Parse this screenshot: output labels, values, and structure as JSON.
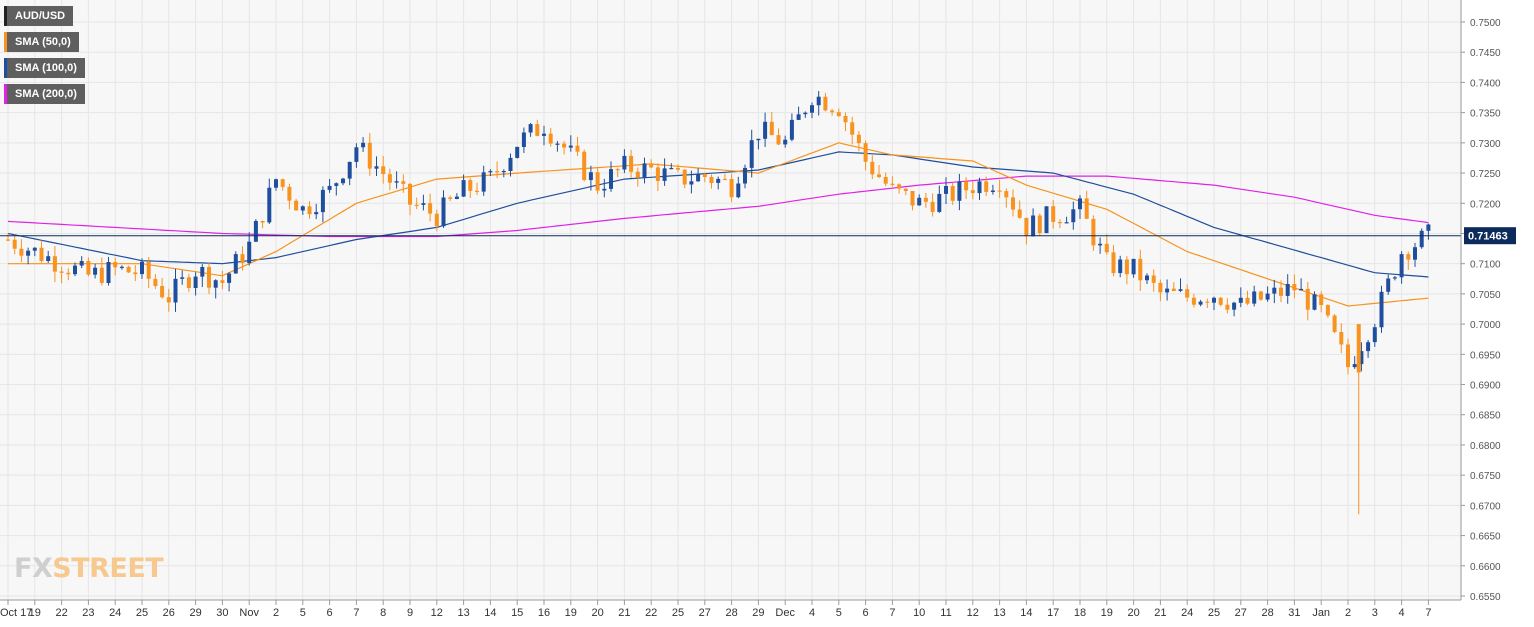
{
  "legend": [
    {
      "label": "AUD/USD",
      "color": "#222222"
    },
    {
      "label": "SMA (50,0)",
      "color": "#f7931e"
    },
    {
      "label": "SMA (100,0)",
      "color": "#1f4e9c"
    },
    {
      "label": "SMA (200,0)",
      "color": "#e021e6"
    }
  ],
  "logo": {
    "part1": "FX",
    "part2": "STREET"
  },
  "colors": {
    "bull": "#1f4e9c",
    "bear": "#f7931e",
    "sma50": "#f7931e",
    "sma100": "#1f4e9c",
    "sma200": "#e021e6",
    "grid": "#e6e6e6",
    "plot_bg": "#f7f7f7",
    "price_line": "#0c2a5c"
  },
  "chart_data": {
    "type": "candlestick",
    "symbol": "AUD/USD",
    "ylim": [
      0.6538,
      0.7535
    ],
    "y_ticks": [
      "0.7500",
      "0.7450",
      "0.7400",
      "0.7350",
      "0.7300",
      "0.7250",
      "0.7200",
      "0.7150",
      "0.7100",
      "0.7050",
      "0.7000",
      "0.6950",
      "0.6900",
      "0.6850",
      "0.6800",
      "0.6750",
      "0.6700",
      "0.6650",
      "0.6600",
      "0.6550"
    ],
    "x_labels": [
      "Oct 17",
      "19",
      "22",
      "23",
      "24",
      "25",
      "26",
      "29",
      "30",
      "Nov",
      "2",
      "5",
      "6",
      "7",
      "8",
      "9",
      "12",
      "13",
      "14",
      "15",
      "16",
      "19",
      "20",
      "21",
      "22",
      "25",
      "27",
      "28",
      "29",
      "Dec",
      "4",
      "5",
      "6",
      "7",
      "10",
      "11",
      "12",
      "13",
      "14",
      "17",
      "18",
      "19",
      "20",
      "21",
      "24",
      "25",
      "27",
      "28",
      "31",
      "Jan",
      "2",
      "3",
      "4",
      "7"
    ],
    "current_price": 0.71463,
    "current_price_label": "0.71463",
    "close_anchors": [
      [
        0,
        0.714
      ],
      [
        1,
        0.712
      ],
      [
        2,
        0.71
      ],
      [
        3,
        0.708
      ],
      [
        4,
        0.709
      ],
      [
        5,
        0.7085
      ],
      [
        6,
        0.7045
      ],
      [
        7,
        0.709
      ],
      [
        8,
        0.707
      ],
      [
        9,
        0.713
      ],
      [
        10,
        0.724
      ],
      [
        11,
        0.719
      ],
      [
        12,
        0.722
      ],
      [
        13,
        0.7295
      ],
      [
        14,
        0.725
      ],
      [
        15,
        0.72
      ],
      [
        16,
        0.718
      ],
      [
        17,
        0.722
      ],
      [
        18,
        0.724
      ],
      [
        19,
        0.73
      ],
      [
        20,
        0.733
      ],
      [
        21,
        0.728
      ],
      [
        22,
        0.723
      ],
      [
        23,
        0.726
      ],
      [
        24,
        0.7255
      ],
      [
        25,
        0.724
      ],
      [
        26,
        0.7245
      ],
      [
        27,
        0.723
      ],
      [
        28,
        0.732
      ],
      [
        29,
        0.73
      ],
      [
        30,
        0.738
      ],
      [
        31,
        0.736
      ],
      [
        32,
        0.727
      ],
      [
        33,
        0.722
      ],
      [
        34,
        0.72
      ],
      [
        35,
        0.721
      ],
      [
        36,
        0.723
      ],
      [
        37,
        0.724
      ],
      [
        38,
        0.716
      ],
      [
        39,
        0.718
      ],
      [
        40,
        0.719
      ],
      [
        41,
        0.71
      ],
      [
        42,
        0.709
      ],
      [
        43,
        0.705
      ],
      [
        44,
        0.7045
      ],
      [
        45,
        0.705
      ],
      [
        46,
        0.703
      ],
      [
        47,
        0.7045
      ],
      [
        48,
        0.706
      ],
      [
        49,
        0.702
      ],
      [
        50,
        0.693
      ],
      [
        51,
        0.701
      ],
      [
        52,
        0.712
      ],
      [
        53,
        0.7146
      ]
    ],
    "spike_low": {
      "x": 50.4,
      "value": 0.6685
    },
    "sma50": [
      [
        0,
        0.71
      ],
      [
        5,
        0.71
      ],
      [
        8,
        0.708
      ],
      [
        10,
        0.712
      ],
      [
        13,
        0.72
      ],
      [
        16,
        0.724
      ],
      [
        19,
        0.725
      ],
      [
        24,
        0.7265
      ],
      [
        28,
        0.725
      ],
      [
        31,
        0.73
      ],
      [
        33,
        0.728
      ],
      [
        36,
        0.727
      ],
      [
        38,
        0.723
      ],
      [
        41,
        0.719
      ],
      [
        44,
        0.712
      ],
      [
        48,
        0.706
      ],
      [
        50,
        0.703
      ],
      [
        53,
        0.7043
      ]
    ],
    "sma100": [
      [
        0,
        0.715
      ],
      [
        5,
        0.7105
      ],
      [
        8,
        0.71
      ],
      [
        10,
        0.711
      ],
      [
        13,
        0.714
      ],
      [
        16,
        0.716
      ],
      [
        19,
        0.72
      ],
      [
        23,
        0.724
      ],
      [
        28,
        0.7255
      ],
      [
        31,
        0.7285
      ],
      [
        33,
        0.728
      ],
      [
        36,
        0.726
      ],
      [
        39,
        0.725
      ],
      [
        42,
        0.7215
      ],
      [
        45,
        0.716
      ],
      [
        49,
        0.711
      ],
      [
        51,
        0.7085
      ],
      [
        53,
        0.7078
      ]
    ],
    "sma200": [
      [
        0,
        0.717
      ],
      [
        4,
        0.716
      ],
      [
        8,
        0.715
      ],
      [
        12,
        0.7145
      ],
      [
        16,
        0.7145
      ],
      [
        19,
        0.7155
      ],
      [
        23,
        0.7175
      ],
      [
        28,
        0.7195
      ],
      [
        31,
        0.7215
      ],
      [
        34,
        0.723
      ],
      [
        38,
        0.7245
      ],
      [
        41,
        0.7245
      ],
      [
        45,
        0.723
      ],
      [
        48,
        0.721
      ],
      [
        51,
        0.718
      ],
      [
        53,
        0.7168
      ]
    ]
  }
}
